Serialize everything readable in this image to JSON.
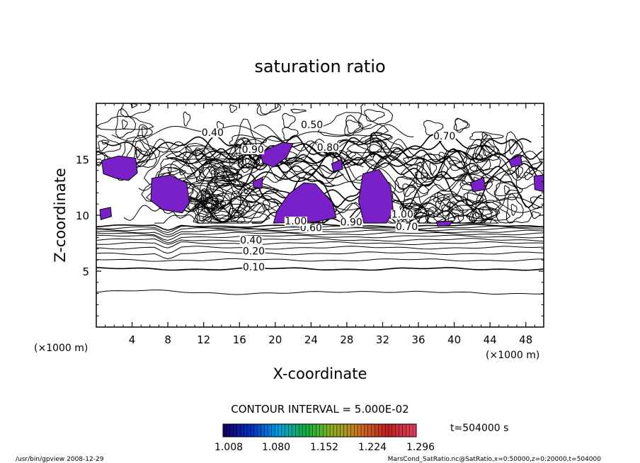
{
  "chart_data": {
    "type": "contour",
    "title": "saturation ratio",
    "xlabel": "X-coordinate",
    "ylabel": "Z-coordinate",
    "xunit": "(×1000 m)",
    "xlim": [
      0,
      50
    ],
    "ylim": [
      0,
      20
    ],
    "xticks": [
      4,
      8,
      12,
      16,
      20,
      24,
      28,
      32,
      36,
      40,
      44,
      48
    ],
    "yticks": [
      5,
      10,
      15
    ],
    "contour_interval": "CONTOUR INTERVAL = 5.000E-02",
    "contour_labels": [
      {
        "text": "0.10",
        "x": 17.6,
        "z": 5.2
      },
      {
        "text": "0.20",
        "x": 17.6,
        "z": 6.6
      },
      {
        "text": "0.40",
        "x": 17.3,
        "z": 7.6
      },
      {
        "text": "0.60",
        "x": 24.0,
        "z": 8.7
      },
      {
        "text": "0.90",
        "x": 28.5,
        "z": 9.2
      },
      {
        "text": "1.00",
        "x": 22.3,
        "z": 9.3
      },
      {
        "text": "0.70",
        "x": 34.7,
        "z": 8.8
      },
      {
        "text": "1.00",
        "x": 34.2,
        "z": 9.9
      },
      {
        "text": "0.50",
        "x": 24.1,
        "z": 17.9
      },
      {
        "text": "0.70",
        "x": 38.9,
        "z": 16.9
      },
      {
        "text": "0.80",
        "x": 25.9,
        "z": 15.9
      },
      {
        "text": "0.90",
        "x": 17.5,
        "z": 15.7
      },
      {
        "text": "0.40",
        "x": 13.0,
        "z": 17.2
      }
    ],
    "colorbar": {
      "ticks": [
        "1.008",
        "1.080",
        "1.152",
        "1.224",
        "1.296"
      ],
      "colors": [
        "#14006a",
        "#0030c8",
        "#00a0e0",
        "#10b040",
        "#90b020",
        "#d07020",
        "#c02020",
        "#e04060"
      ]
    },
    "fill_color": "#7a20c8",
    "time": "t=504000 s"
  },
  "footer": {
    "left": "/usr/bin/gpview   2008-12-29",
    "right": "MarsCond_SatRatio.nc@SatRatio,x=0:50000,z=0:20000,t=504000"
  }
}
